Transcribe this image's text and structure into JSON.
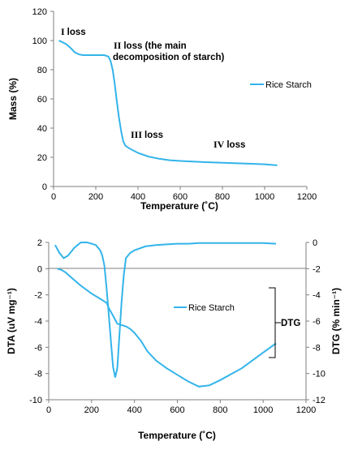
{
  "colors": {
    "series": "#33b4ea",
    "axis": "#7f7f7f"
  },
  "chart_data": [
    {
      "type": "line",
      "xlabel": "Temperature (˚C)",
      "ylabel": "Mass (%)",
      "xlim": [
        0,
        1200
      ],
      "ylim": [
        0,
        120
      ],
      "xticks": [
        "0",
        "200",
        "400",
        "600",
        "800",
        "1000",
        "1200"
      ],
      "yticks": [
        "0",
        "20",
        "40",
        "60",
        "80",
        "100",
        "120"
      ],
      "grid": false,
      "legend_position": "right",
      "series": [
        {
          "name": "Rice Starch",
          "x": [
            25,
            40,
            60,
            80,
            100,
            120,
            140,
            160,
            200,
            240,
            260,
            270,
            280,
            290,
            300,
            310,
            320,
            330,
            340,
            350,
            360,
            380,
            400,
            450,
            500,
            550,
            600,
            700,
            800,
            900,
            1000,
            1060
          ],
          "y": [
            100,
            99,
            97.5,
            95,
            92,
            90.5,
            90,
            90,
            90,
            90,
            89,
            86,
            80,
            70,
            58,
            47,
            38,
            31,
            28,
            27,
            26,
            24.5,
            23,
            20.5,
            19,
            18,
            17.5,
            16.8,
            16.2,
            15.8,
            15.2,
            14.5
          ]
        }
      ],
      "annotations": [
        {
          "roman": "I",
          "text": "loss"
        },
        {
          "roman": "II",
          "text": "loss (the main",
          "line2": "decomposition of starch)"
        },
        {
          "roman": "III",
          "text": "loss"
        },
        {
          "roman": "IV",
          "text": "loss"
        }
      ]
    },
    {
      "type": "line",
      "xlabel": "Temperature (˚C)",
      "ylabel_left": "DTA  (uV mg⁻¹)",
      "ylabel_right": "DTG  (% min⁻¹)",
      "xlim": [
        0,
        1200
      ],
      "ylim_left": [
        -10,
        2
      ],
      "ylim_right": [
        -12,
        0
      ],
      "xticks": [
        "0",
        "200",
        "400",
        "600",
        "800",
        "1000",
        "1200"
      ],
      "yticks_left": [
        "-10",
        "-8",
        "-6",
        "-4",
        "-2",
        "0",
        "2"
      ],
      "yticks_right": [
        "-12",
        "-10",
        "-8",
        "-6",
        "-4",
        "-2",
        "0"
      ],
      "grid": false,
      "series": [
        {
          "name": "Rice Starch",
          "axis": "left",
          "x": [
            30,
            50,
            70,
            90,
            120,
            150,
            180,
            200,
            220,
            240,
            250,
            260,
            270,
            280,
            290,
            300,
            310,
            320,
            330,
            340,
            350,
            360,
            380,
            400,
            450,
            500,
            550,
            600,
            650,
            700,
            800,
            900,
            1000,
            1060
          ],
          "y": [
            1.8,
            1.2,
            0.8,
            1.0,
            1.6,
            2.0,
            2.0,
            1.9,
            1.8,
            1.4,
            1.0,
            0.2,
            -1.5,
            -3.5,
            -5.5,
            -7.5,
            -8.3,
            -7.6,
            -5.0,
            -2.5,
            -0.5,
            0.8,
            1.2,
            1.4,
            1.7,
            1.8,
            1.85,
            1.9,
            1.9,
            1.95,
            1.95,
            1.95,
            1.95,
            1.9
          ]
        },
        {
          "name": "DTG",
          "axis": "right",
          "x": [
            40,
            60,
            80,
            100,
            150,
            200,
            240,
            260,
            270,
            280,
            300,
            320,
            340,
            360,
            380,
            400,
            430,
            460,
            500,
            550,
            600,
            650,
            700,
            750,
            800,
            900,
            1000,
            1060
          ],
          "y": [
            -2.0,
            -2.1,
            -2.3,
            -2.6,
            -3.3,
            -3.9,
            -4.3,
            -4.5,
            -4.6,
            -5.0,
            -5.6,
            -6.2,
            -6.3,
            -6.4,
            -6.6,
            -6.9,
            -7.5,
            -8.3,
            -9.0,
            -9.6,
            -10.1,
            -10.6,
            -11.0,
            -10.9,
            -10.5,
            -9.6,
            -8.4,
            -7.7
          ]
        }
      ],
      "legend_position": "center",
      "bracket_label": "DTG"
    }
  ]
}
